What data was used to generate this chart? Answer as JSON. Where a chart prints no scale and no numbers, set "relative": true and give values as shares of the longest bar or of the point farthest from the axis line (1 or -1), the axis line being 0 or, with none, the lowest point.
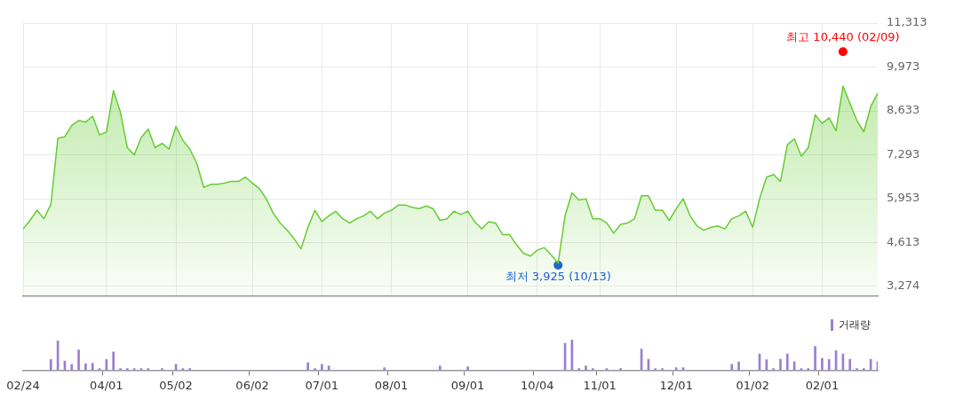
{
  "chart_data": [
    {
      "type": "area",
      "categories": [
        null,
        null,
        null,
        null,
        null,
        null,
        null,
        null,
        null,
        null,
        null,
        null,
        null,
        null,
        null,
        null,
        null,
        null,
        null,
        null,
        null,
        null,
        null,
        null,
        null,
        null,
        null,
        null,
        null,
        null,
        null,
        null,
        null,
        null,
        null,
        null,
        null,
        null,
        null,
        null,
        null,
        null,
        null,
        null,
        null,
        null,
        null,
        null,
        null,
        null,
        null,
        null,
        null,
        null,
        null,
        null,
        null,
        null,
        null,
        null,
        null,
        null,
        null,
        null,
        null,
        null,
        null,
        null,
        null,
        null,
        null,
        null,
        null,
        null,
        null,
        null,
        null,
        null,
        null,
        null,
        null,
        null,
        null,
        null,
        null,
        null,
        null,
        null,
        null,
        null,
        null,
        null,
        null,
        null,
        null,
        null,
        null,
        null,
        null,
        null,
        null,
        null,
        null,
        null,
        null,
        null,
        null,
        null,
        null,
        null,
        null,
        null,
        null,
        null,
        null,
        null,
        null,
        null,
        null,
        null,
        null,
        null,
        null,
        null
      ],
      "series": [
        {
          "color": "#66cc33",
          "values": [
            5030,
            5290,
            5600,
            5340,
            5780,
            7800,
            7840,
            8190,
            8340,
            8290,
            8470,
            7900,
            7990,
            9250,
            8600,
            7510,
            7290,
            7820,
            8080,
            7510,
            7640,
            7470,
            8160,
            7730,
            7470,
            7030,
            6300,
            6390,
            6390,
            6430,
            6480,
            6480,
            6610,
            6430,
            6260,
            5950,
            5510,
            5210,
            4990,
            4730,
            4420,
            5080,
            5600,
            5250,
            5430,
            5570,
            5340,
            5210,
            5340,
            5430,
            5570,
            5340,
            5510,
            5600,
            5760,
            5760,
            5690,
            5650,
            5730,
            5650,
            5290,
            5340,
            5570,
            5470,
            5570,
            5250,
            5030,
            5250,
            5210,
            4860,
            4860,
            4550,
            4290,
            4200,
            4380,
            4460,
            4240,
            3980,
            5430,
            6130,
            5910,
            5950,
            5340,
            5340,
            5210,
            4900,
            5170,
            5210,
            5340,
            6040,
            6040,
            5600,
            5600,
            5290,
            5650,
            5950,
            5430,
            5120,
            4990,
            5080,
            5120,
            5030,
            5340,
            5430,
            5570,
            5080,
            5950,
            6610,
            6690,
            6480,
            7600,
            7780,
            7250,
            7510,
            8510,
            8250,
            8420,
            8030,
            9390,
            8860,
            8340,
            7990,
            8770,
            9170
          ]
        },
        {
          "type": "scatter",
          "color": "#ff0000",
          "marker": "circle",
          "values": [
            null,
            null,
            null,
            null,
            null,
            null,
            null,
            null,
            null,
            null,
            null,
            null,
            null,
            null,
            null,
            null,
            null,
            null,
            null,
            null,
            null,
            null,
            null,
            null,
            null,
            null,
            null,
            null,
            null,
            null,
            null,
            null,
            null,
            null,
            null,
            null,
            null,
            null,
            null,
            null,
            null,
            null,
            null,
            null,
            null,
            null,
            null,
            null,
            null,
            null,
            null,
            null,
            null,
            null,
            null,
            null,
            null,
            null,
            null,
            null,
            null,
            null,
            null,
            null,
            null,
            null,
            null,
            null,
            null,
            null,
            null,
            null,
            null,
            null,
            null,
            null,
            null,
            null,
            null,
            null,
            null,
            null,
            null,
            null,
            null,
            null,
            null,
            null,
            null,
            null,
            null,
            null,
            null,
            null,
            null,
            null,
            null,
            null,
            null,
            null,
            null,
            null,
            null,
            null,
            null,
            null,
            null,
            null,
            null,
            null,
            null,
            null,
            null,
            null,
            null,
            null,
            null,
            null,
            10440,
            null,
            null,
            null,
            null,
            null
          ],
          "value_labels": [
            null,
            null,
            null,
            null,
            null,
            null,
            null,
            null,
            null,
            null,
            null,
            null,
            null,
            null,
            null,
            null,
            null,
            null,
            null,
            null,
            null,
            null,
            null,
            null,
            null,
            null,
            null,
            null,
            null,
            null,
            null,
            null,
            null,
            null,
            null,
            null,
            null,
            null,
            null,
            null,
            null,
            null,
            null,
            null,
            null,
            null,
            null,
            null,
            null,
            null,
            null,
            null,
            null,
            null,
            null,
            null,
            null,
            null,
            null,
            null,
            null,
            null,
            null,
            null,
            null,
            null,
            null,
            null,
            null,
            null,
            null,
            null,
            null,
            null,
            null,
            null,
            null,
            null,
            null,
            null,
            null,
            null,
            null,
            null,
            null,
            null,
            null,
            null,
            null,
            null,
            null,
            null,
            null,
            null,
            null,
            null,
            null,
            null,
            null,
            null,
            null,
            null,
            null,
            null,
            null,
            null,
            null,
            null,
            null,
            null,
            null,
            null,
            null,
            null,
            null,
            null,
            null,
            null,
            "최고 10,440 (02/09)",
            null,
            null,
            null,
            null,
            null
          ]
        },
        {
          "type": "scatter",
          "color": "#1a5fd6",
          "marker": "circle",
          "values": [
            null,
            null,
            null,
            null,
            null,
            null,
            null,
            null,
            null,
            null,
            null,
            null,
            null,
            null,
            null,
            null,
            null,
            null,
            null,
            null,
            null,
            null,
            null,
            null,
            null,
            null,
            null,
            null,
            null,
            null,
            null,
            null,
            null,
            null,
            null,
            null,
            null,
            null,
            null,
            null,
            null,
            null,
            null,
            null,
            null,
            null,
            null,
            null,
            null,
            null,
            null,
            null,
            null,
            null,
            null,
            null,
            null,
            null,
            null,
            null,
            null,
            null,
            null,
            null,
            null,
            null,
            null,
            null,
            null,
            null,
            null,
            null,
            null,
            null,
            null,
            null,
            null,
            3925,
            null,
            null,
            null,
            null,
            null,
            null,
            null,
            null,
            null,
            null,
            null,
            null,
            null,
            null,
            null,
            null,
            null,
            null,
            null,
            null,
            null,
            null,
            null,
            null,
            null,
            null,
            null,
            null,
            null,
            null,
            null,
            null,
            null,
            null,
            null,
            null,
            null,
            null,
            null,
            null,
            null,
            null,
            null,
            null,
            null,
            null
          ],
          "value_labels": [
            null,
            null,
            null,
            null,
            null,
            null,
            null,
            null,
            null,
            null,
            null,
            null,
            null,
            null,
            null,
            null,
            null,
            null,
            null,
            null,
            null,
            null,
            null,
            null,
            null,
            null,
            null,
            null,
            null,
            null,
            null,
            null,
            null,
            null,
            null,
            null,
            null,
            null,
            null,
            null,
            null,
            null,
            null,
            null,
            null,
            null,
            null,
            null,
            null,
            null,
            null,
            null,
            null,
            null,
            null,
            null,
            null,
            null,
            null,
            null,
            null,
            null,
            null,
            null,
            null,
            null,
            null,
            null,
            null,
            null,
            null,
            null,
            null,
            null,
            null,
            null,
            null,
            "최저 3,925 (10/13)",
            null,
            null,
            null,
            null,
            null,
            null,
            null,
            null,
            null,
            null,
            null,
            null,
            null,
            null,
            null,
            null,
            null,
            null,
            null,
            null,
            null,
            null,
            null,
            null,
            null,
            null,
            null,
            null,
            null,
            null,
            null,
            null,
            null,
            null,
            null,
            null,
            null,
            null,
            null,
            null,
            null,
            null,
            null,
            null,
            null,
            null
          ]
        }
      ],
      "ylim": [
        2970,
        11313
      ],
      "yticks": [
        {
          "value": 3274,
          "label": "3,274"
        },
        {
          "value": 4613,
          "label": "4,613"
        },
        {
          "value": 5953,
          "label": "5,953"
        },
        {
          "value": 7293,
          "label": "7,293"
        },
        {
          "value": 8633,
          "label": "8,633"
        },
        {
          "value": 9973,
          "label": "9,973"
        },
        {
          "value": 11313,
          "label": "11,313"
        }
      ],
      "grid": true,
      "tick_labels": "y"
    },
    {
      "type": "bar",
      "relative": true,
      "categories": [
        "02/24",
        null,
        null,
        null,
        null,
        null,
        null,
        null,
        null,
        null,
        null,
        null,
        "04/01",
        null,
        null,
        null,
        null,
        null,
        null,
        null,
        null,
        null,
        "05/02",
        null,
        null,
        null,
        null,
        null,
        null,
        null,
        null,
        null,
        null,
        "06/02",
        null,
        null,
        null,
        null,
        null,
        null,
        null,
        null,
        null,
        "07/01",
        null,
        null,
        null,
        null,
        null,
        null,
        null,
        null,
        null,
        "08/01",
        null,
        null,
        null,
        null,
        null,
        null,
        null,
        null,
        null,
        null,
        "09/01",
        null,
        null,
        null,
        null,
        null,
        null,
        null,
        null,
        null,
        "10/04",
        null,
        null,
        null,
        null,
        null,
        null,
        null,
        null,
        "11/01",
        null,
        null,
        null,
        null,
        null,
        null,
        null,
        null,
        null,
        null,
        "12/01",
        null,
        null,
        null,
        null,
        null,
        null,
        null,
        null,
        null,
        null,
        "01/02",
        null,
        null,
        null,
        null,
        null,
        null,
        null,
        null,
        null,
        "02/01",
        null,
        null,
        null,
        null,
        null,
        null,
        null,
        null
      ],
      "series": [
        {
          "name": "거래량",
          "color": "#9b7fd0",
          "values": [
            0,
            0,
            0,
            0,
            0.35,
            0.96,
            0.3,
            0.19,
            0.66,
            0.21,
            0.23,
            0.05,
            0.35,
            0.6,
            0.05,
            0.05,
            0.05,
            0.05,
            0.05,
            0,
            0.05,
            0,
            0.19,
            0.05,
            0.05,
            0,
            0,
            0,
            0,
            0,
            0,
            0,
            0,
            0,
            0,
            0,
            0,
            0,
            0,
            0,
            0,
            0.25,
            0.05,
            0.19,
            0.14,
            0,
            0,
            0,
            0,
            0,
            0,
            0,
            0.08,
            0,
            0,
            0,
            0,
            0,
            0,
            0,
            0.14,
            0,
            0,
            0,
            0.11,
            0,
            0,
            0,
            0,
            0,
            0,
            0,
            0,
            0,
            0,
            0,
            0,
            0,
            0.88,
            1,
            0.05,
            0.14,
            0.05,
            0,
            0.05,
            0,
            0.05,
            0,
            0,
            0.69,
            0.36,
            0.05,
            0.05,
            0,
            0.08,
            0.08,
            0,
            0,
            0,
            0,
            0,
            0,
            0.19,
            0.27,
            0,
            0,
            0.53,
            0.34,
            0.05,
            0.36,
            0.53,
            0.28,
            0.05,
            0.05,
            0.78,
            0.39,
            0.35,
            0.64,
            0.53,
            0.36,
            0.05,
            0.05,
            0.36,
            0.28
          ]
        }
      ],
      "legend": "top right",
      "tick_labels": "x"
    }
  ]
}
